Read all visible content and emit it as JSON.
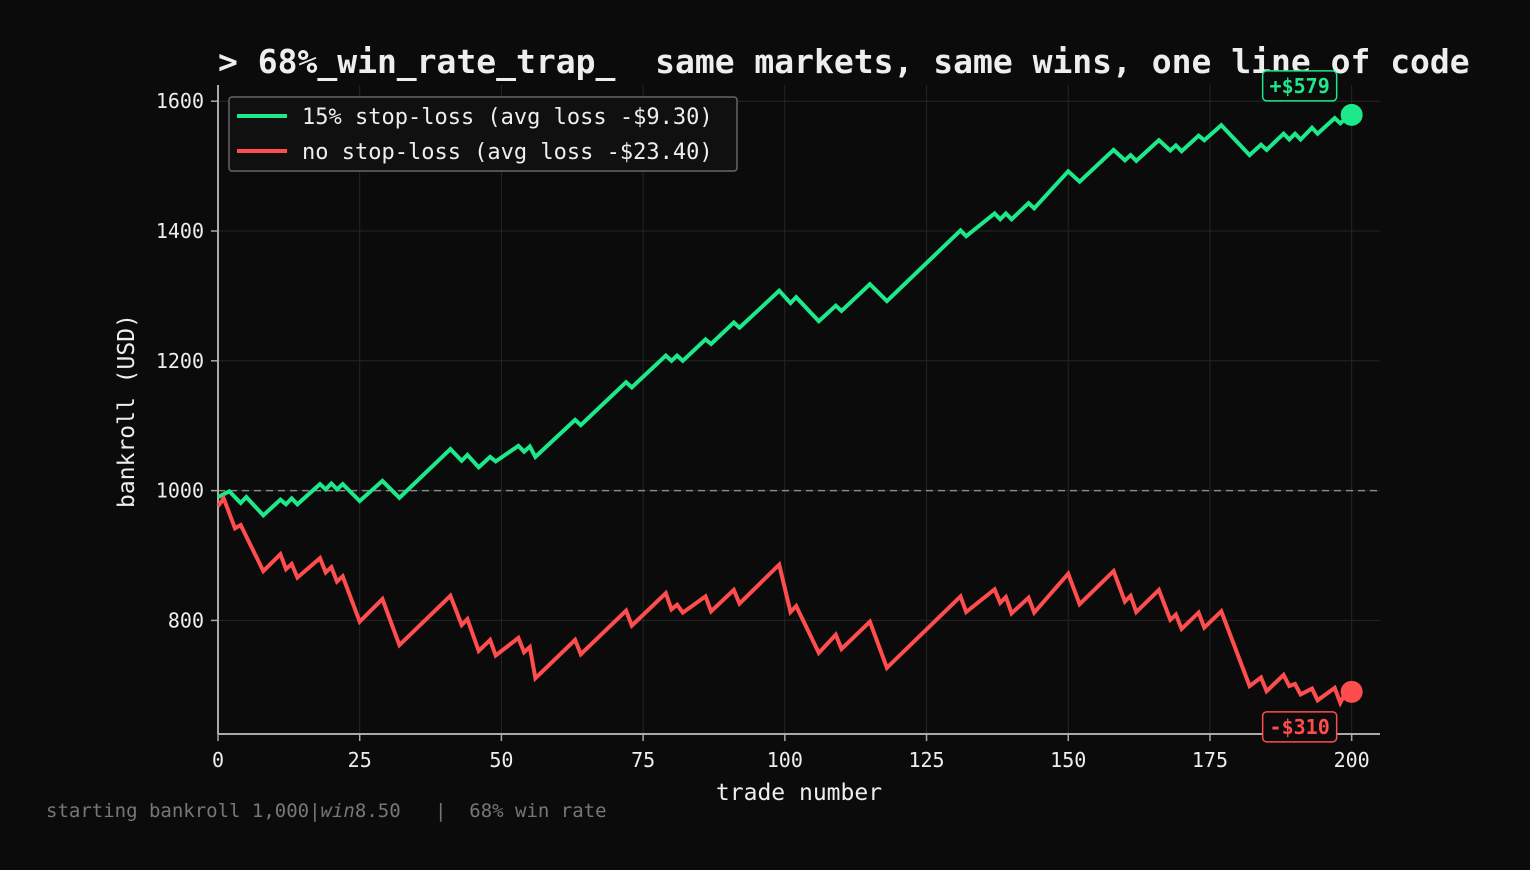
{
  "chart_data": {
    "type": "line",
    "title": "> 68%_win_rate_trap_  same markets, same wins, one line of code",
    "xlabel": "trade number",
    "ylabel": "bankroll (USD)",
    "xlim": [
      0,
      205
    ],
    "ylim": [
      625,
      1625
    ],
    "xticks": [
      0,
      25,
      50,
      75,
      100,
      125,
      150,
      175,
      200
    ],
    "yticks": [
      800,
      1000,
      1200,
      1400,
      1600
    ],
    "grid": true,
    "reference_line": {
      "y": 1000,
      "style": "dashed"
    },
    "legend_placement": "top-left",
    "series": [
      {
        "name": "15% stop-loss (avg loss -$9.30)",
        "color": "#1de98b",
        "end_label": "+$579",
        "x": [
          0,
          2,
          4,
          5,
          8,
          11,
          12,
          13,
          14,
          18,
          19,
          20,
          21,
          22,
          25,
          29,
          32,
          41,
          43,
          44,
          46,
          48,
          49,
          53,
          54,
          55,
          56,
          63,
          64,
          72,
          73,
          79,
          80,
          81,
          82,
          86,
          87,
          91,
          92,
          99,
          101,
          102,
          106,
          109,
          110,
          115,
          118,
          131,
          132,
          137,
          138,
          139,
          140,
          143,
          144,
          150,
          152,
          158,
          160,
          161,
          162,
          166,
          168,
          169,
          170,
          173,
          174,
          177,
          182,
          184,
          185,
          188,
          189,
          190,
          191,
          193,
          194,
          197,
          198,
          199,
          200
        ],
        "values": [
          990,
          999,
          981,
          990,
          962,
          986,
          979,
          988,
          979,
          1010,
          1002,
          1011,
          1002,
          1010,
          984,
          1015,
          989,
          1064,
          1046,
          1055,
          1036,
          1052,
          1045,
          1069,
          1060,
          1068,
          1052,
          1109,
          1101,
          1167,
          1159,
          1208,
          1200,
          1208,
          1200,
          1233,
          1226,
          1259,
          1251,
          1308,
          1289,
          1298,
          1261,
          1285,
          1277,
          1318,
          1292,
          1401,
          1392,
          1427,
          1418,
          1427,
          1418,
          1443,
          1435,
          1492,
          1476,
          1525,
          1509,
          1517,
          1508,
          1540,
          1524,
          1532,
          1523,
          1547,
          1540,
          1563,
          1517,
          1533,
          1525,
          1550,
          1541,
          1550,
          1541,
          1559,
          1550,
          1574,
          1566,
          1574,
          1579
        ]
      },
      {
        "name": "no stop-loss (avg loss -$23.40)",
        "color": "#ff4d4d",
        "end_label": "-$310",
        "x": [
          0,
          1,
          3,
          4,
          8,
          11,
          12,
          13,
          14,
          18,
          19,
          20,
          21,
          22,
          25,
          29,
          32,
          41,
          43,
          44,
          46,
          48,
          49,
          53,
          54,
          55,
          56,
          63,
          64,
          72,
          73,
          79,
          80,
          81,
          82,
          86,
          87,
          91,
          92,
          99,
          101,
          102,
          106,
          109,
          110,
          115,
          118,
          131,
          132,
          137,
          138,
          139,
          140,
          143,
          144,
          150,
          152,
          158,
          160,
          161,
          162,
          166,
          168,
          169,
          170,
          173,
          174,
          177,
          182,
          184,
          185,
          188,
          189,
          190,
          191,
          193,
          194,
          197,
          198,
          199,
          200
        ],
        "values": [
          976,
          988,
          942,
          947,
          876,
          902,
          879,
          887,
          866,
          896,
          874,
          882,
          860,
          868,
          798,
          833,
          762,
          838,
          793,
          802,
          753,
          770,
          746,
          773,
          751,
          759,
          711,
          770,
          748,
          815,
          792,
          842,
          817,
          824,
          812,
          837,
          814,
          847,
          826,
          886,
          813,
          822,
          750,
          778,
          756,
          798,
          727,
          837,
          813,
          848,
          827,
          836,
          811,
          835,
          812,
          872,
          825,
          876,
          829,
          838,
          813,
          847,
          801,
          809,
          787,
          812,
          789,
          814,
          699,
          712,
          691,
          716,
          699,
          702,
          686,
          695,
          677,
          696,
          673,
          690,
          690
        ]
      }
    ]
  },
  "footnote": {
    "part1": "starting bankroll 1,000|",
    "part2": "win",
    "part3": "8.50   |  68% win rate"
  }
}
